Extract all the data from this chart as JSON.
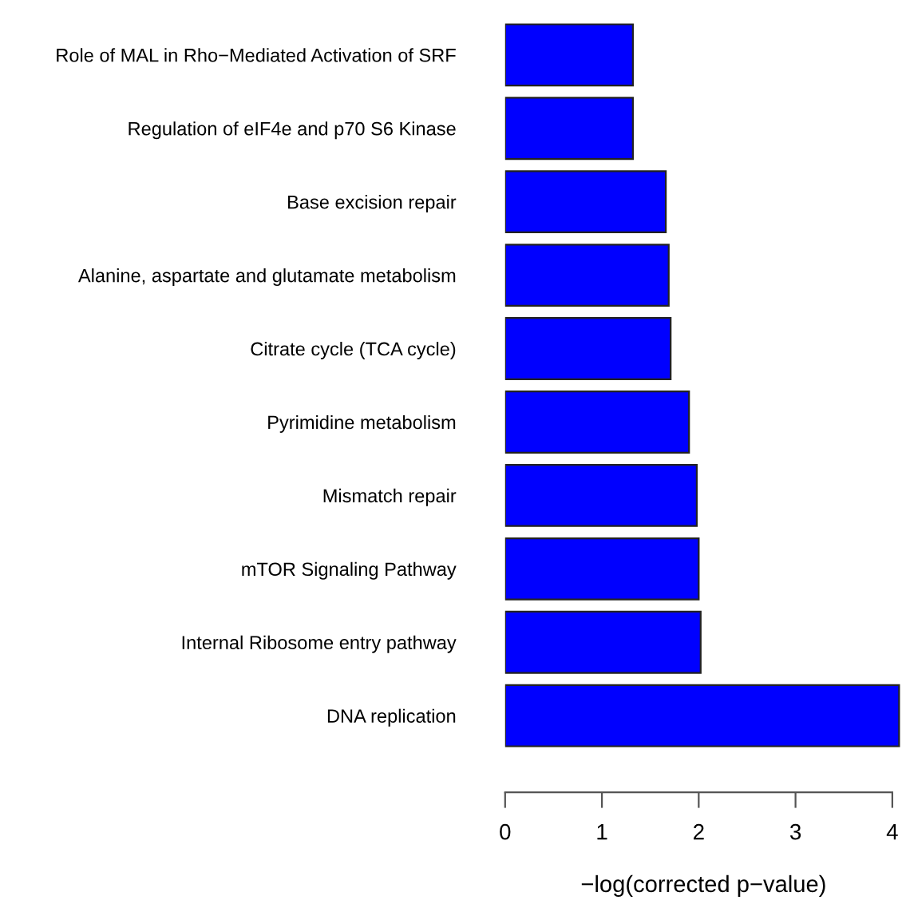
{
  "chart_data": {
    "type": "bar",
    "orientation": "horizontal",
    "xlabel": "−log(corrected p−value)",
    "categories": [
      "Role of MAL in Rho−Mediated Activation of SRF",
      "Regulation of eIF4e and p70 S6 Kinase",
      "Base excision repair",
      "Alanine, aspartate and glutamate metabolism",
      "Citrate cycle (TCA cycle)",
      "Pyrimidine metabolism",
      "Mismatch repair",
      "mTOR Signaling Pathway",
      "Internal Ribosome entry pathway",
      "DNA replication"
    ],
    "values": [
      1.32,
      1.32,
      1.66,
      1.69,
      1.71,
      1.9,
      1.98,
      2.0,
      2.02,
      4.07
    ],
    "color": "#0000ff",
    "xlim": [
      0,
      4.1
    ],
    "xticks": [
      0,
      1,
      2,
      3,
      4
    ],
    "grid": false,
    "legend": false
  }
}
